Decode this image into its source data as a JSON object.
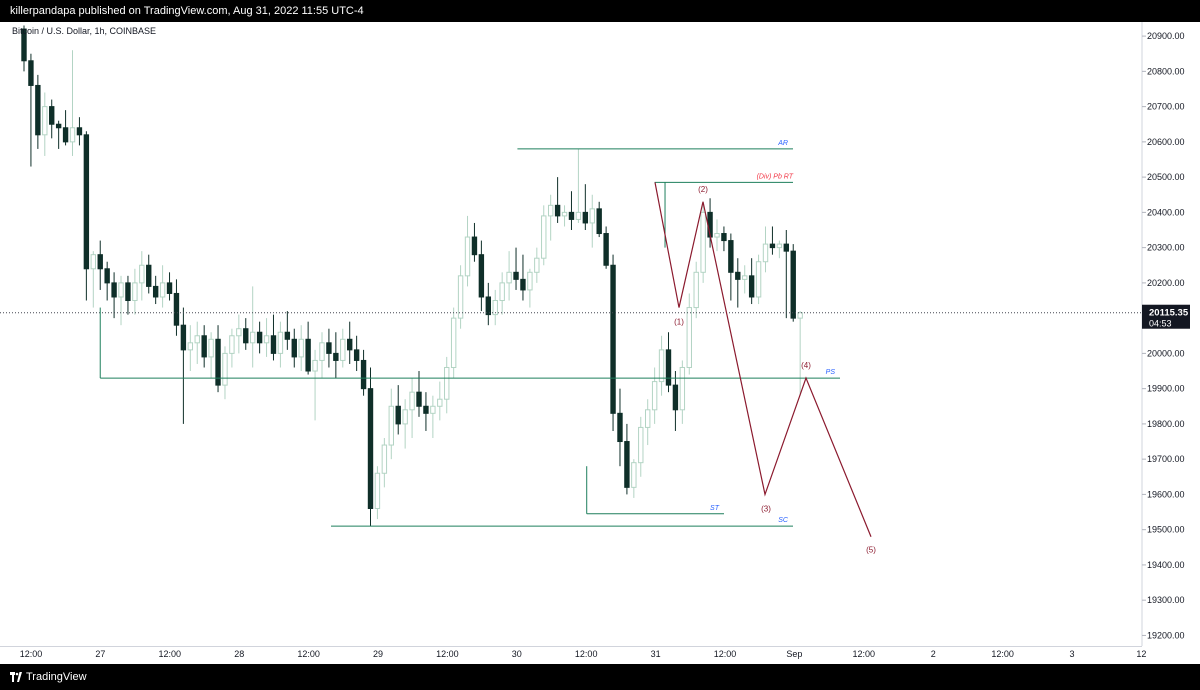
{
  "header": {
    "published_text": "killerpandapa published on TradingView.com, Aug 31, 2022 11:55 UTC-4"
  },
  "footer": {
    "brand": "TradingView"
  },
  "chart_data": {
    "type": "candlestick",
    "title": "Bitcoin / U.S. Dollar, 1h, COINBASE",
    "ylim": [
      19170,
      20940
    ],
    "y_ticks": [
      20900,
      20800,
      20700,
      20600,
      20500,
      20400,
      20300,
      20200,
      20100,
      20000,
      19900,
      19800,
      19700,
      19600,
      19500,
      19400,
      19300,
      19200
    ],
    "x_tick_labels": [
      "12:00",
      "27",
      "12:00",
      "28",
      "12:00",
      "29",
      "12:00",
      "30",
      "12:00",
      "31",
      "12:00",
      "Sep",
      "12:00",
      "2",
      "12:00",
      "3",
      "12"
    ],
    "last_price": {
      "value": "20115.35",
      "countdown": "04:53",
      "price": 20115.35
    },
    "levels": [
      {
        "label": "AR",
        "price": 20580
      },
      {
        "label": "(Div) Pb RT",
        "price": 20485
      },
      {
        "label": "PS",
        "price": 19930
      },
      {
        "label": "ST",
        "price": 19545
      },
      {
        "label": "SC",
        "price": 19510
      }
    ],
    "wave_labels": [
      "(1)",
      "(2)",
      "(3)",
      "(4)",
      "(5)"
    ],
    "wave_points": [
      20485,
      20130,
      20430,
      19600,
      19930,
      19480
    ],
    "candles": [
      [
        20920,
        20930,
        20800,
        20830
      ],
      [
        20830,
        20850,
        20530,
        20760
      ],
      [
        20760,
        20790,
        20580,
        20620
      ],
      [
        20620,
        20740,
        20560,
        20700
      ],
      [
        20700,
        20720,
        20610,
        20650
      ],
      [
        20650,
        20660,
        20580,
        20640
      ],
      [
        20640,
        20690,
        20590,
        20600
      ],
      [
        20600,
        20860,
        20560,
        20640
      ],
      [
        20640,
        20670,
        20590,
        20620
      ],
      [
        20620,
        20630,
        20150,
        20240
      ],
      [
        20240,
        20290,
        20130,
        20280
      ],
      [
        20280,
        20320,
        20180,
        20240
      ],
      [
        20240,
        20260,
        20150,
        20200
      ],
      [
        20200,
        20230,
        20100,
        20160
      ],
      [
        20160,
        20220,
        20080,
        20200
      ],
      [
        20200,
        20220,
        20110,
        20150
      ],
      [
        20150,
        20240,
        20110,
        20200
      ],
      [
        20200,
        20290,
        20150,
        20250
      ],
      [
        20250,
        20280,
        20170,
        20190
      ],
      [
        20190,
        20220,
        20140,
        20160
      ],
      [
        20160,
        20250,
        20130,
        20200
      ],
      [
        20200,
        20230,
        20150,
        20170
      ],
      [
        20170,
        20210,
        20050,
        20080
      ],
      [
        20080,
        20130,
        19800,
        20010
      ],
      [
        20010,
        20080,
        19950,
        20030
      ],
      [
        20030,
        20090,
        19970,
        20050
      ],
      [
        20050,
        20080,
        19960,
        19990
      ],
      [
        19990,
        20060,
        19930,
        20040
      ],
      [
        20040,
        20080,
        19890,
        19910
      ],
      [
        19910,
        20020,
        19870,
        20000
      ],
      [
        20000,
        20070,
        19960,
        20050
      ],
      [
        20050,
        20110,
        20000,
        20070
      ],
      [
        20070,
        20100,
        20010,
        20030
      ],
      [
        20030,
        20190,
        19960,
        20060
      ],
      [
        20060,
        20090,
        20000,
        20030
      ],
      [
        20030,
        20100,
        19990,
        20050
      ],
      [
        20050,
        20110,
        19980,
        20000
      ],
      [
        20000,
        20090,
        19960,
        20060
      ],
      [
        20060,
        20120,
        20010,
        20040
      ],
      [
        20040,
        20070,
        19960,
        19990
      ],
      [
        19990,
        20080,
        19950,
        20040
      ],
      [
        20040,
        20090,
        19940,
        19950
      ],
      [
        19950,
        20010,
        19810,
        19980
      ],
      [
        19980,
        20060,
        19930,
        20030
      ],
      [
        20030,
        20070,
        19960,
        20000
      ],
      [
        20000,
        20060,
        19930,
        19980
      ],
      [
        19980,
        20070,
        19960,
        20040
      ],
      [
        20040,
        20090,
        19970,
        20010
      ],
      [
        20010,
        20050,
        19950,
        19980
      ],
      [
        19980,
        20010,
        19880,
        19900
      ],
      [
        19900,
        19960,
        19510,
        19560
      ],
      [
        19560,
        19680,
        19530,
        19660
      ],
      [
        19660,
        19760,
        19620,
        19740
      ],
      [
        19740,
        19900,
        19700,
        19850
      ],
      [
        19850,
        19910,
        19770,
        19800
      ],
      [
        19800,
        19870,
        19730,
        19840
      ],
      [
        19840,
        19930,
        19760,
        19890
      ],
      [
        19890,
        19950,
        19820,
        19850
      ],
      [
        19850,
        19890,
        19780,
        19830
      ],
      [
        19830,
        19880,
        19760,
        19850
      ],
      [
        19850,
        19920,
        19810,
        19870
      ],
      [
        19870,
        19990,
        19830,
        19960
      ],
      [
        19960,
        20130,
        19930,
        20100
      ],
      [
        20100,
        20250,
        20070,
        20220
      ],
      [
        20220,
        20390,
        20190,
        20330
      ],
      [
        20330,
        20370,
        20260,
        20280
      ],
      [
        20280,
        20320,
        20120,
        20160
      ],
      [
        20160,
        20200,
        20080,
        20110
      ],
      [
        20110,
        20180,
        20080,
        20150
      ],
      [
        20150,
        20230,
        20110,
        20200
      ],
      [
        20200,
        20290,
        20150,
        20230
      ],
      [
        20230,
        20300,
        20180,
        20210
      ],
      [
        20210,
        20280,
        20150,
        20180
      ],
      [
        20180,
        20240,
        20130,
        20230
      ],
      [
        20230,
        20300,
        20200,
        20270
      ],
      [
        20270,
        20420,
        20250,
        20390
      ],
      [
        20390,
        20450,
        20320,
        20420
      ],
      [
        20420,
        20500,
        20370,
        20390
      ],
      [
        20390,
        20420,
        20360,
        20400
      ],
      [
        20400,
        20460,
        20350,
        20380
      ],
      [
        20380,
        20580,
        20370,
        20400
      ],
      [
        20400,
        20480,
        20350,
        20370
      ],
      [
        20370,
        20450,
        20300,
        20410
      ],
      [
        20410,
        20430,
        20330,
        20340
      ],
      [
        20340,
        20360,
        20240,
        20250
      ],
      [
        20250,
        20280,
        19780,
        19830
      ],
      [
        19830,
        19900,
        19680,
        19750
      ],
      [
        19750,
        19800,
        19600,
        19620
      ],
      [
        19620,
        19700,
        19590,
        19690
      ],
      [
        19690,
        19820,
        19650,
        19790
      ],
      [
        19790,
        19870,
        19740,
        19840
      ],
      [
        19840,
        19960,
        19800,
        19920
      ],
      [
        19920,
        20050,
        19880,
        20010
      ],
      [
        20010,
        20060,
        19890,
        19910
      ],
      [
        19910,
        19950,
        19780,
        19840
      ],
      [
        19840,
        19980,
        19800,
        19960
      ],
      [
        19960,
        20170,
        19940,
        20130
      ],
      [
        20130,
        20260,
        20100,
        20230
      ],
      [
        20230,
        20430,
        20200,
        20400
      ],
      [
        20400,
        20440,
        20300,
        20330
      ],
      [
        20330,
        20380,
        20290,
        20340
      ],
      [
        20340,
        20360,
        20290,
        20320
      ],
      [
        20320,
        20340,
        20150,
        20230
      ],
      [
        20230,
        20270,
        20130,
        20210
      ],
      [
        20210,
        20250,
        20170,
        20220
      ],
      [
        20220,
        20270,
        20140,
        20160
      ],
      [
        20160,
        20280,
        20140,
        20260
      ],
      [
        20260,
        20360,
        20230,
        20310
      ],
      [
        20310,
        20360,
        20280,
        20300
      ],
      [
        20300,
        20320,
        20270,
        20310
      ],
      [
        20310,
        20350,
        20100,
        20290
      ],
      [
        20290,
        20310,
        20090,
        20100
      ],
      [
        20100,
        20120,
        19880,
        20115.35
      ]
    ]
  }
}
